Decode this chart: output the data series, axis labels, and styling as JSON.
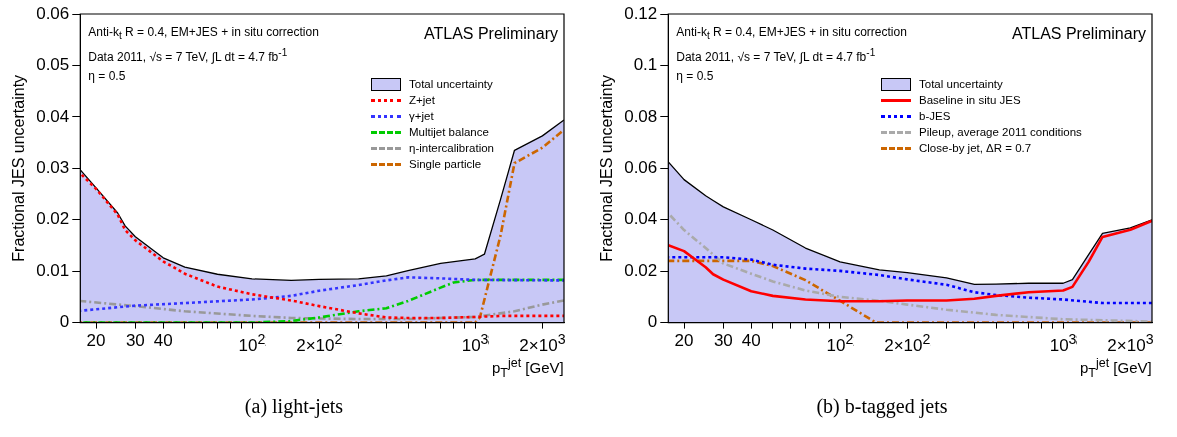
{
  "chart_data": [
    {
      "type": "line",
      "title": null,
      "ylabel": "Fractional JES uncertainty",
      "xlabel": "p$_{T}$$^{jet}$ [GeV]",
      "log": "x",
      "grid": false,
      "legend": "top right",
      "marker": "none",
      "xlim": [
        17,
        2500
      ],
      "ylim": [
        0,
        0.06
      ],
      "xticks": [
        {
          "value": 20,
          "label": "20"
        },
        {
          "value": 30,
          "label": "30"
        },
        {
          "value": 40,
          "label": "40"
        },
        {
          "value": 50,
          "label": null
        },
        {
          "value": 60,
          "label": null
        },
        {
          "value": 70,
          "label": null
        },
        {
          "value": 80,
          "label": null
        },
        {
          "value": 90,
          "label": null
        },
        {
          "value": 100,
          "label": "10$^{2}$"
        },
        {
          "value": 200,
          "label": "2×10$^{2}$"
        },
        {
          "value": 300,
          "label": null
        },
        {
          "value": 400,
          "label": null
        },
        {
          "value": 500,
          "label": null
        },
        {
          "value": 600,
          "label": null
        },
        {
          "value": 700,
          "label": null
        },
        {
          "value": 800,
          "label": null
        },
        {
          "value": 900,
          "label": null
        },
        {
          "value": 1000,
          "label": "10$^{3}$"
        },
        {
          "value": 2000,
          "label": "2×10$^{3}$"
        }
      ],
      "yticks": [
        0,
        0.01,
        0.02,
        0.03,
        0.04,
        0.05,
        0.06
      ],
      "annotations": [
        "Anti-k$_{t}$ R = 0.4, EM+JES + in situ correction",
        "Data 2011, √s = 7 TeV, ∫L dt = 4.7 fb$^{-1}$",
        "η = 0.5",
        "ATLAS Preliminary",
        "(a) light-jets"
      ],
      "series": [
        {
          "name": "Total uncertainty",
          "type": "area",
          "color": "#c8c8f6",
          "x": [
            17,
            20,
            25,
            27,
            30,
            40,
            50,
            70,
            100,
            150,
            200,
            300,
            400,
            500,
            700,
            1000,
            1100,
            1300,
            1500,
            2000,
            2500
          ],
          "values": [
            0.0297,
            0.0262,
            0.0213,
            0.0188,
            0.0167,
            0.0126,
            0.0108,
            0.0094,
            0.0085,
            0.0082,
            0.0084,
            0.0085,
            0.0091,
            0.0101,
            0.0115,
            0.0124,
            0.0133,
            0.024,
            0.0335,
            0.0363,
            0.0394
          ]
        },
        {
          "name": "Z+jet",
          "color": "#ff0000",
          "line_style": "dotted",
          "x": [
            17,
            20,
            25,
            27,
            30,
            40,
            50,
            70,
            100,
            150,
            200,
            300,
            400,
            500,
            700,
            1000,
            1300,
            2500
          ],
          "values": [
            0.029,
            0.026,
            0.021,
            0.018,
            0.016,
            0.0119,
            0.0095,
            0.007,
            0.0055,
            0.0043,
            0.0032,
            0.0018,
            0.001,
            0.0009,
            0.0009,
            0.0011,
            0.0013,
            0.0013
          ]
        },
        {
          "name": "γ+jet",
          "color": "#3333ff",
          "line_style": "dotted",
          "x": [
            17,
            30,
            50,
            100,
            150,
            200,
            300,
            400,
            500,
            700,
            1000,
            2500
          ],
          "values": [
            0.0023,
            0.0033,
            0.0038,
            0.0045,
            0.0052,
            0.0062,
            0.0073,
            0.0082,
            0.0088,
            0.0086,
            0.0083,
            0.0082
          ]
        },
        {
          "name": "Multijet balance",
          "color": "#00cc00",
          "line_style": "dashed",
          "x": [
            17,
            100,
            150,
            200,
            300,
            400,
            500,
            700,
            800,
            1000,
            2500
          ],
          "values": [
            0,
            0,
            0.0003,
            0.001,
            0.0022,
            0.0028,
            0.0042,
            0.0068,
            0.0078,
            0.0083,
            0.0083
          ]
        },
        {
          "name": "η-intercalibration",
          "color": "#999999",
          "line_style": "dashed",
          "x": [
            17,
            30,
            50,
            100,
            150,
            200,
            300,
            500,
            1000,
            1500,
            2000,
            2500
          ],
          "values": [
            0.0042,
            0.0032,
            0.0022,
            0.0013,
            0.0009,
            0.0008,
            0.0007,
            0.0007,
            0.0011,
            0.0022,
            0.0035,
            0.0043
          ]
        },
        {
          "name": "Single particle",
          "color": "#cc6600",
          "line_style": "dashed",
          "x": [
            17,
            1000,
            1050,
            1300,
            1500,
            2000,
            2500
          ],
          "values": [
            0,
            0,
            0.001,
            0.017,
            0.031,
            0.034,
            0.0375
          ]
        }
      ]
    },
    {
      "type": "line",
      "title": null,
      "ylabel": "Fractional JES uncertainty",
      "xlabel": "p$_{T}$$^{jet}$ [GeV]",
      "log": "x",
      "grid": false,
      "legend": "top right",
      "marker": "none",
      "xlim": [
        17,
        2500
      ],
      "ylim": [
        0,
        0.12
      ],
      "xticks": [
        {
          "value": 20,
          "label": "20"
        },
        {
          "value": 30,
          "label": "30"
        },
        {
          "value": 40,
          "label": "40"
        },
        {
          "value": 50,
          "label": null
        },
        {
          "value": 60,
          "label": null
        },
        {
          "value": 70,
          "label": null
        },
        {
          "value": 80,
          "label": null
        },
        {
          "value": 90,
          "label": null
        },
        {
          "value": 100,
          "label": "10$^{2}$"
        },
        {
          "value": 200,
          "label": "2×10$^{2}$"
        },
        {
          "value": 300,
          "label": null
        },
        {
          "value": 400,
          "label": null
        },
        {
          "value": 500,
          "label": null
        },
        {
          "value": 600,
          "label": null
        },
        {
          "value": 700,
          "label": null
        },
        {
          "value": 800,
          "label": null
        },
        {
          "value": 900,
          "label": null
        },
        {
          "value": 1000,
          "label": "10$^{3}$"
        },
        {
          "value": 2000,
          "label": "2×10$^{3}$"
        }
      ],
      "yticks": [
        0,
        0.02,
        0.04,
        0.06,
        0.08,
        0.1,
        0.12
      ],
      "annotations": [
        "Anti-k$_{t}$ R = 0.4, EM+JES + in situ correction",
        "Data 2011, √s = 7 TeV, ∫L dt = 4.7 fb$^{-1}$",
        "η = 0.5",
        "ATLAS Preliminary",
        "(b) b-tagged jets"
      ],
      "series": [
        {
          "name": "Total uncertainty",
          "type": "area",
          "color": "#c8c8f6",
          "x": [
            17,
            20,
            25,
            27,
            30,
            40,
            50,
            70,
            100,
            150,
            200,
            300,
            400,
            500,
            700,
            1000,
            1100,
            1300,
            1500,
            2000,
            2500
          ],
          "values": [
            0.0625,
            0.0556,
            0.0493,
            0.0475,
            0.045,
            0.04,
            0.036,
            0.029,
            0.0236,
            0.0205,
            0.0194,
            0.0174,
            0.0149,
            0.015,
            0.0153,
            0.0153,
            0.0167,
            0.0264,
            0.0347,
            0.0368,
            0.04
          ]
        },
        {
          "name": "Baseline in situ JES",
          "color": "#ff0000",
          "line_style": "solid",
          "x": [
            17,
            20,
            25,
            27,
            30,
            40,
            50,
            70,
            100,
            150,
            200,
            300,
            400,
            500,
            700,
            1000,
            1100,
            1300,
            1500,
            2000,
            2500
          ],
          "values": [
            0.0301,
            0.0278,
            0.0215,
            0.0188,
            0.0167,
            0.0122,
            0.0104,
            0.009,
            0.0083,
            0.0083,
            0.0086,
            0.0086,
            0.0093,
            0.0104,
            0.0118,
            0.0125,
            0.0139,
            0.0236,
            0.0333,
            0.0361,
            0.0396
          ]
        },
        {
          "name": "b-JES",
          "color": "#0000ff",
          "line_style": "dotted",
          "x": [
            17,
            30,
            40,
            50,
            70,
            100,
            150,
            200,
            300,
            400,
            500,
            700,
            1000,
            1500,
            2500
          ],
          "values": [
            0.0254,
            0.0254,
            0.0245,
            0.0225,
            0.021,
            0.0201,
            0.0185,
            0.0168,
            0.0147,
            0.0118,
            0.0107,
            0.0097,
            0.009,
            0.0076,
            0.0076
          ]
        },
        {
          "name": "Pileup,  average 2011 conditions",
          "color": "#aaaaaa",
          "line_style": "dashed",
          "x": [
            17,
            20,
            25,
            30,
            40,
            50,
            70,
            100,
            150,
            200,
            300,
            500,
            1000,
            2500
          ],
          "values": [
            0.0425,
            0.036,
            0.029,
            0.023,
            0.019,
            0.016,
            0.0125,
            0.01,
            0.0085,
            0.007,
            0.005,
            0.003,
            0.0013,
            0.0004
          ]
        },
        {
          "name": "Close-by jet, ΔR = 0.7",
          "color": "#cc6600",
          "line_style": "dashed",
          "x": [
            17,
            40,
            50,
            70,
            100,
            145,
            2500
          ],
          "values": [
            0.024,
            0.024,
            0.022,
            0.0165,
            0.0085,
            0,
            0
          ]
        }
      ]
    }
  ]
}
